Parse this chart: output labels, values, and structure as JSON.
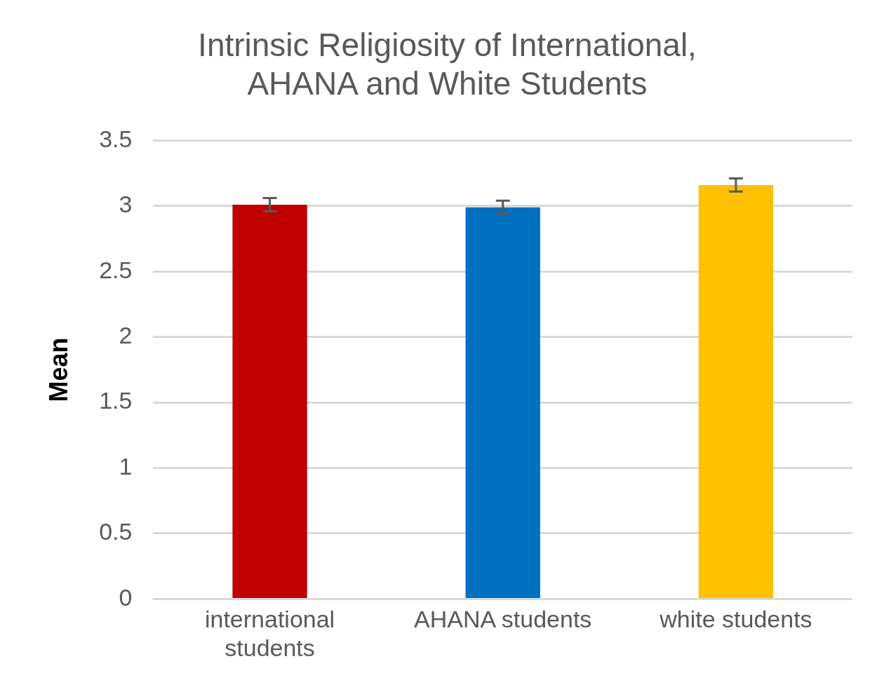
{
  "chart_data": {
    "type": "bar",
    "title": "Intrinsic Religiosity of International, AHANA and White Students",
    "ylabel": "Mean",
    "categories": [
      "international students",
      "AHANA students",
      "white students"
    ],
    "values": [
      3.01,
      2.99,
      3.16
    ],
    "colors": [
      "#c00000",
      "#0070c0",
      "#ffc000"
    ],
    "errors": [
      0.05,
      0.05,
      0.05
    ],
    "ylim": [
      0,
      3.5
    ],
    "yticks": [
      0,
      0.5,
      1,
      1.5,
      2,
      2.5,
      3,
      3.5
    ],
    "grid": "y",
    "legend": false
  }
}
